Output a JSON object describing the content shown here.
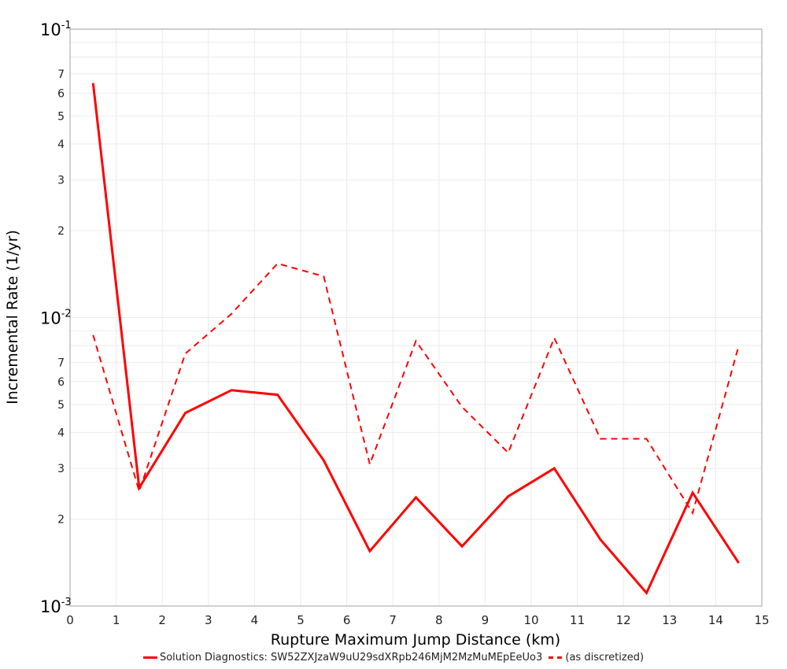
{
  "chart_data": {
    "type": "line",
    "title": "",
    "xlabel": "Rupture Maximum Jump Distance (km)",
    "ylabel": "Incremental Rate (1/yr)",
    "xlim": [
      0,
      15
    ],
    "ylim": [
      0.001,
      0.1
    ],
    "yscale": "log",
    "grid": true,
    "legend_position": "bottom",
    "x_ticks": [
      "0",
      "1",
      "2",
      "3",
      "4",
      "5",
      "6",
      "7",
      "8",
      "9",
      "10",
      "11",
      "12",
      "13",
      "14",
      "15"
    ],
    "y_decade_ticks": [
      {
        "base": "10",
        "exp": "-1",
        "value": 0.1
      },
      {
        "base": "10",
        "exp": "-2",
        "value": 0.01
      },
      {
        "base": "10",
        "exp": "-3",
        "value": 0.001
      }
    ],
    "y_minor_ticks": [
      "2",
      "3",
      "4",
      "5",
      "6",
      "7"
    ],
    "x": [
      0.5,
      1.5,
      2.5,
      3.5,
      4.5,
      5.5,
      6.5,
      7.5,
      8.5,
      9.5,
      10.5,
      11.5,
      12.5,
      13.5,
      14.5
    ],
    "series": [
      {
        "name": "Solution Diagnostics: SW52ZXJzaW9uU29sdXRpb246MjM2MzMuMEpEeUo3",
        "style": "solid",
        "color": "#ff0000",
        "values": [
          0.065,
          0.00257,
          0.00467,
          0.0056,
          0.0054,
          0.0032,
          0.00155,
          0.00238,
          0.00161,
          0.0024,
          0.003,
          0.0017,
          0.00111,
          0.00247,
          0.00141
        ]
      },
      {
        "name": "(as discretized)",
        "style": "dashed",
        "color": "#ff0000",
        "values": [
          0.0087,
          0.0025,
          0.0075,
          0.0103,
          0.0154,
          0.0139,
          0.0031,
          0.0083,
          0.0049,
          0.0034,
          0.0085,
          0.0038,
          0.0038,
          0.0021,
          0.008
        ]
      }
    ]
  },
  "legend": {
    "items": [
      {
        "label": "Solution Diagnostics: SW52ZXJzaW9uU29sdXRpb246MjM2MzMuMEpEeUo3",
        "style": "solid"
      },
      {
        "label": "(as discretized)",
        "style": "dashed"
      }
    ]
  },
  "colors": {
    "series": "#ff0000",
    "grid": "#ebebeb",
    "frame": "#a0a0a0",
    "background": "#ffffff"
  }
}
